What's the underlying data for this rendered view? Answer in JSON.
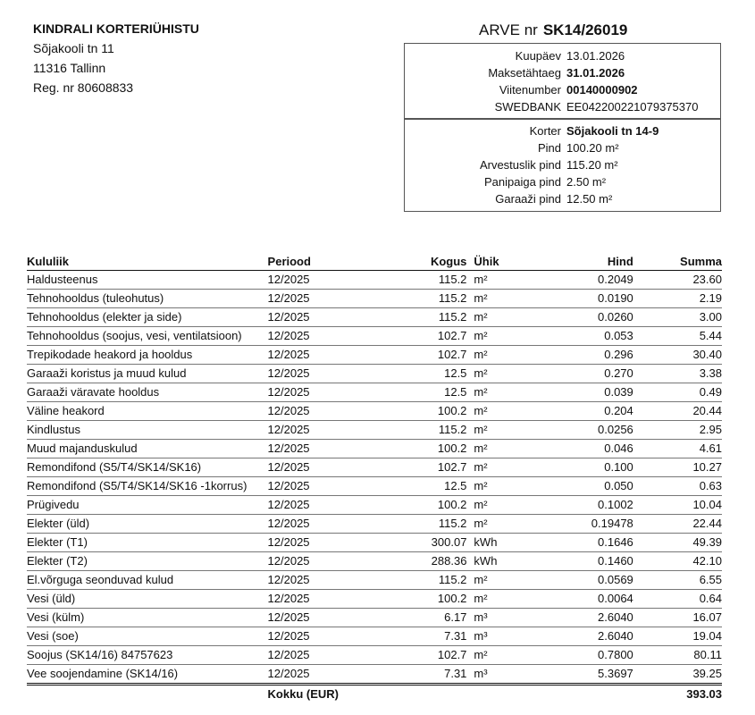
{
  "issuer": {
    "name": "KINDRALI KORTERIÜHISTU",
    "address1": "Sõjakooli tn 11",
    "address2": "11316 Tallinn",
    "reg": "Reg. nr 80608833"
  },
  "invoice": {
    "label": "ARVE nr",
    "number": "SK14/26019"
  },
  "payment_box": [
    {
      "k": "Kuupäev",
      "v": "13.01.2026",
      "bold": false
    },
    {
      "k": "Maksetähtaeg",
      "v": "31.01.2026",
      "bold": true
    },
    {
      "k": "Viitenumber",
      "v": "00140000902",
      "bold": true
    },
    {
      "k": "SWEDBANK",
      "v": "EE042200221079375370",
      "bold": false
    }
  ],
  "apartment_box": [
    {
      "k": "Korter",
      "v": "Sõjakooli tn 14-9",
      "bold": true
    },
    {
      "k": "Pind",
      "v": "100.20 m²",
      "bold": false
    },
    {
      "k": "Arvestuslik pind",
      "v": "115.20 m²",
      "bold": false
    },
    {
      "k": "Panipaiga pind",
      "v": "2.50 m²",
      "bold": false
    },
    {
      "k": "Garaaži pind",
      "v": "12.50 m²",
      "bold": false
    }
  ],
  "table": {
    "headers": [
      "Kululiik",
      "Periood",
      "Kogus",
      "Ühik",
      "Hind",
      "Summa"
    ],
    "rows": [
      [
        "Haldusteenus",
        "12/2025",
        "115.2",
        "m²",
        "0.2049",
        "23.60"
      ],
      [
        "Tehnohooldus (tuleohutus)",
        "12/2025",
        "115.2",
        "m²",
        "0.0190",
        "2.19"
      ],
      [
        "Tehnohooldus (elekter ja side)",
        "12/2025",
        "115.2",
        "m²",
        "0.0260",
        "3.00"
      ],
      [
        "Tehnohooldus (soojus, vesi, ventilatsioon)",
        "12/2025",
        "102.7",
        "m²",
        "0.053",
        "5.44"
      ],
      [
        "Trepikodade heakord ja hooldus",
        "12/2025",
        "102.7",
        "m²",
        "0.296",
        "30.40"
      ],
      [
        "Garaaži koristus ja muud kulud",
        "12/2025",
        "12.5",
        "m²",
        "0.270",
        "3.38"
      ],
      [
        "Garaaži väravate hooldus",
        "12/2025",
        "12.5",
        "m²",
        "0.039",
        "0.49"
      ],
      [
        "Väline heakord",
        "12/2025",
        "100.2",
        "m²",
        "0.204",
        "20.44"
      ],
      [
        "Kindlustus",
        "12/2025",
        "115.2",
        "m²",
        "0.0256",
        "2.95"
      ],
      [
        "Muud majanduskulud",
        "12/2025",
        "100.2",
        "m²",
        "0.046",
        "4.61"
      ],
      [
        "Remondifond (S5/T4/SK14/SK16)",
        "12/2025",
        "102.7",
        "m²",
        "0.100",
        "10.27"
      ],
      [
        "Remondifond (S5/T4/SK14/SK16 -1korrus)",
        "12/2025",
        "12.5",
        "m²",
        "0.050",
        "0.63"
      ],
      [
        "Prügivedu",
        "12/2025",
        "100.2",
        "m²",
        "0.1002",
        "10.04"
      ],
      [
        "Elekter (üld)",
        "12/2025",
        "115.2",
        "m²",
        "0.19478",
        "22.44"
      ],
      [
        "Elekter (T1)",
        "12/2025",
        "300.07",
        "kWh",
        "0.1646",
        "49.39"
      ],
      [
        "Elekter (T2)",
        "12/2025",
        "288.36",
        "kWh",
        "0.1460",
        "42.10"
      ],
      [
        "El.võrguga seonduvad kulud",
        "12/2025",
        "115.2",
        "m²",
        "0.0569",
        "6.55"
      ],
      [
        "Vesi (üld)",
        "12/2025",
        "100.2",
        "m²",
        "0.0064",
        "0.64"
      ],
      [
        "Vesi (külm)",
        "12/2025",
        "6.17",
        "m³",
        "2.6040",
        "16.07"
      ],
      [
        "Vesi (soe)",
        "12/2025",
        "7.31",
        "m³",
        "2.6040",
        "19.04"
      ],
      [
        "Soojus (SK14/16) 84757623",
        "12/2025",
        "102.7",
        "m²",
        "0.7800",
        "80.11"
      ],
      [
        "Vee soojendamine (SK14/16)",
        "12/2025",
        "7.31",
        "m³",
        "5.3697",
        "39.25"
      ]
    ],
    "total_label": "Kokku (EUR)",
    "total": "393.03"
  }
}
